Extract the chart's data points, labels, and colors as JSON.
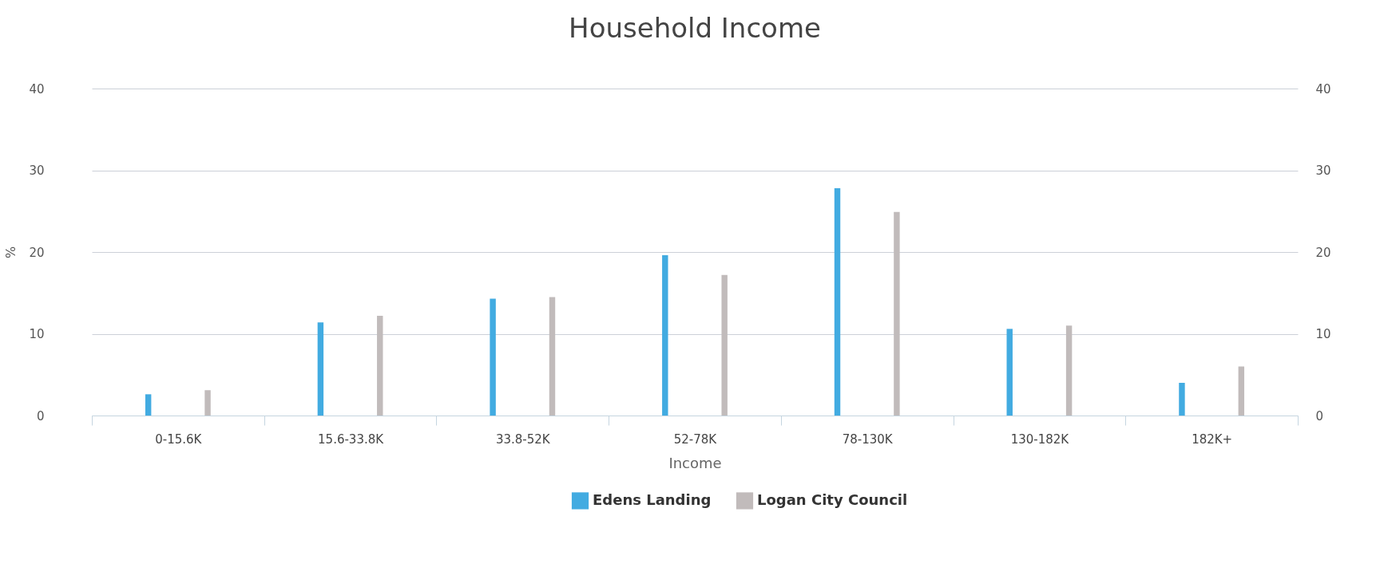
{
  "chart_data": {
    "type": "bar",
    "title": "Household Income",
    "xlabel": "Income",
    "ylabel": "%",
    "categories": [
      "0-15.6K",
      "15.6-33.8K",
      "33.8-52K",
      "52-78K",
      "78-130K",
      "130-182K",
      "182K+"
    ],
    "series": [
      {
        "name": "Edens Landing",
        "color": "#42abe1",
        "values": [
          2.6,
          11.4,
          14.3,
          19.6,
          27.8,
          10.6,
          4.0
        ]
      },
      {
        "name": "Logan City Council",
        "color": "#c1bbbb",
        "values": [
          3.1,
          12.2,
          14.5,
          17.2,
          24.9,
          11.0,
          6.0
        ]
      }
    ],
    "ylim": [
      0,
      40
    ],
    "yticks": [
      0,
      10,
      20,
      30,
      40
    ],
    "y2lim": [
      0,
      40
    ],
    "y2ticks": [
      0,
      10,
      20,
      30,
      40
    ],
    "grid": "y",
    "legend": "bottom"
  }
}
